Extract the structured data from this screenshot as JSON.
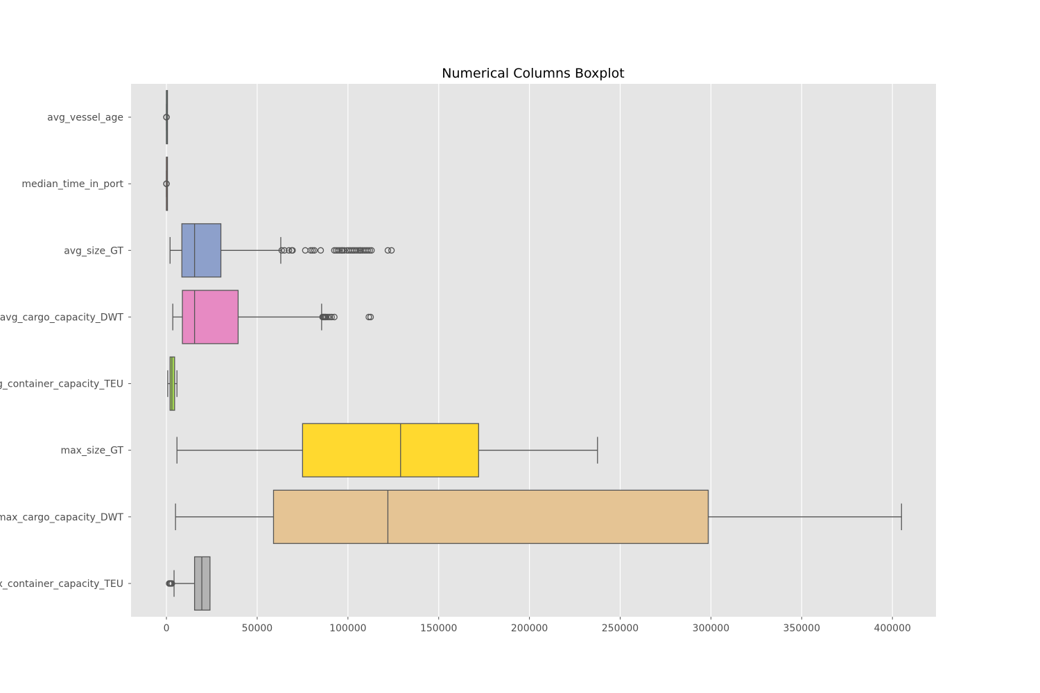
{
  "chart_data": {
    "type": "boxplot",
    "orientation": "horizontal",
    "title": "Numerical Columns Boxplot",
    "xlabel": "",
    "ylabel": "",
    "xlim": [
      -19500,
      424000
    ],
    "x_ticks": [
      0,
      50000,
      100000,
      150000,
      200000,
      250000,
      300000,
      350000,
      400000
    ],
    "grid": true,
    "background": "#e5e5e5",
    "categories": [
      "avg_vessel_age",
      "median_time_in_port",
      "avg_size_GT",
      "avg_cargo_capacity_DWT",
      "avg_container_capacity_TEU",
      "max_size_GT",
      "max_cargo_capacity_DWT",
      "max_container_capacity_TEU"
    ],
    "series": [
      {
        "category": "avg_vessel_age",
        "color": "#66c2a5",
        "whisker_low": 0,
        "q1": 5,
        "median": 10,
        "q3": 15,
        "whisker_high": 30,
        "outliers": [
          0,
          5,
          40
        ]
      },
      {
        "category": "median_time_in_port",
        "color": "#fc8d62",
        "whisker_low": 0,
        "q1": 1,
        "median": 2,
        "q3": 4,
        "whisker_high": 8,
        "outliers": [
          0,
          10,
          40
        ]
      },
      {
        "category": "avg_size_GT",
        "color": "#8da0cb",
        "whisker_low": 2000,
        "q1": 8500,
        "median": 15500,
        "q3": 30000,
        "whisker_high": 63000,
        "outliers": [
          63500,
          65000,
          67500,
          69000,
          69500,
          76500,
          79500,
          80500,
          81500,
          85000,
          92500,
          93500,
          94500,
          95500,
          96500,
          97000,
          98000,
          99500,
          100500,
          101500,
          102500,
          103500,
          104500,
          105500,
          106500,
          107000,
          108000,
          109000,
          110000,
          111000,
          112000,
          113000,
          122000,
          124000
        ]
      },
      {
        "category": "avg_cargo_capacity_DWT",
        "color": "#e78ac3",
        "whisker_low": 3500,
        "q1": 8800,
        "median": 15500,
        "q3": 39500,
        "whisker_high": 85500,
        "outliers": [
          86000,
          86500,
          87000,
          87500,
          88000,
          89000,
          90000,
          91000,
          92500,
          111500,
          112500
        ]
      },
      {
        "category": "avg_container_capacity_TEU",
        "color": "#a6d854",
        "whisker_low": 700,
        "q1": 2000,
        "median": 3000,
        "q3": 4500,
        "whisker_high": 5800,
        "outliers": []
      },
      {
        "category": "max_size_GT",
        "color": "#ffd92f",
        "whisker_low": 5800,
        "q1": 75000,
        "median": 129000,
        "q3": 172000,
        "whisker_high": 237500,
        "outliers": []
      },
      {
        "category": "max_cargo_capacity_DWT",
        "color": "#e5c494",
        "whisker_low": 5000,
        "q1": 59000,
        "median": 122000,
        "q3": 298500,
        "whisker_high": 405000,
        "outliers": []
      },
      {
        "category": "max_container_capacity_TEU",
        "color": "#b3b3b3",
        "whisker_low": 4200,
        "q1": 15500,
        "median": 19500,
        "q3": 24000,
        "whisker_high": 24000,
        "outliers": [
          1500,
          2000,
          2400,
          3000
        ]
      }
    ]
  }
}
